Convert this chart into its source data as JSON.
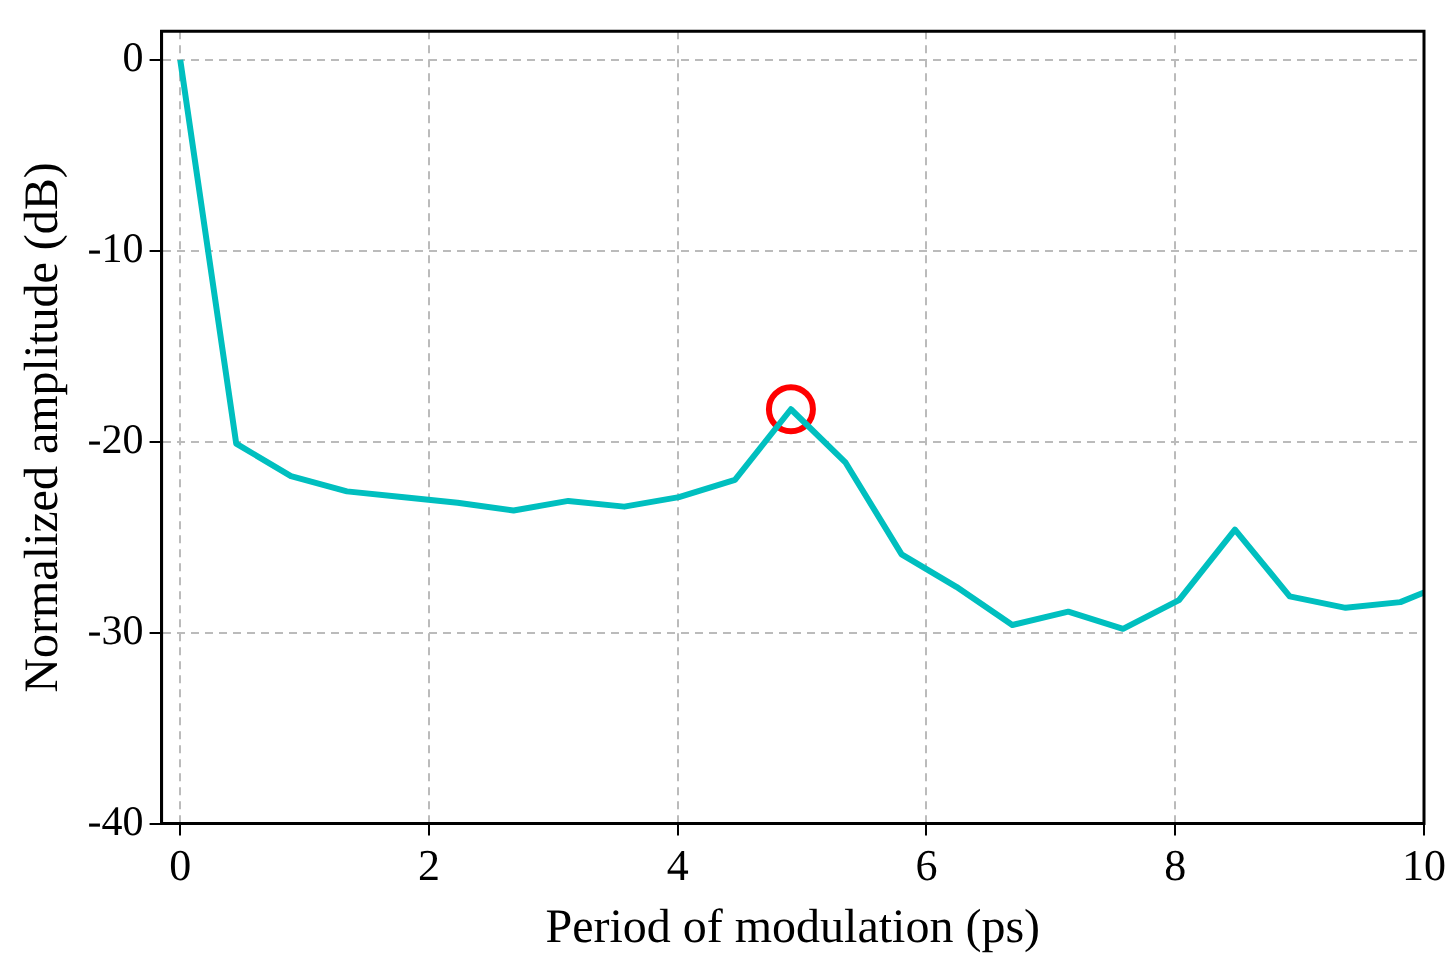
{
  "chart_data": {
    "type": "line",
    "xlabel": "Period of modulation (ps)",
    "ylabel": "Normalized amplitude (dB)",
    "xlim": [
      -0.15,
      10
    ],
    "ylim": [
      -40,
      1.5
    ],
    "xticks": [
      0,
      2,
      4,
      6,
      8,
      10
    ],
    "yticks": [
      0,
      -10,
      -20,
      -30,
      -40
    ],
    "grid": true,
    "legend": false,
    "series": [
      {
        "color": "#00bfbf",
        "marker": "none",
        "x": [
          0,
          0.45,
          0.89,
          1.34,
          1.78,
          2.23,
          2.68,
          3.12,
          3.57,
          4.01,
          4.46,
          4.91,
          5.35,
          5.8,
          6.24,
          6.69,
          7.14,
          7.58,
          8.03,
          8.48,
          8.92,
          9.37,
          9.81,
          10
        ],
        "values": [
          0,
          -20.1,
          -21.8,
          -22.6,
          -22.9,
          -23.2,
          -23.6,
          -23.1,
          -23.4,
          -22.9,
          -22.0,
          -18.3,
          -21.1,
          -25.9,
          -27.6,
          -29.6,
          -28.9,
          -29.8,
          -28.3,
          -24.6,
          -28.1,
          -28.7,
          -28.4,
          -27.9
        ]
      },
      {
        "type": "scatter",
        "color": "#ff0000",
        "marker": "circle",
        "x": [
          4.91
        ],
        "values": [
          -18.3
        ]
      }
    ]
  }
}
